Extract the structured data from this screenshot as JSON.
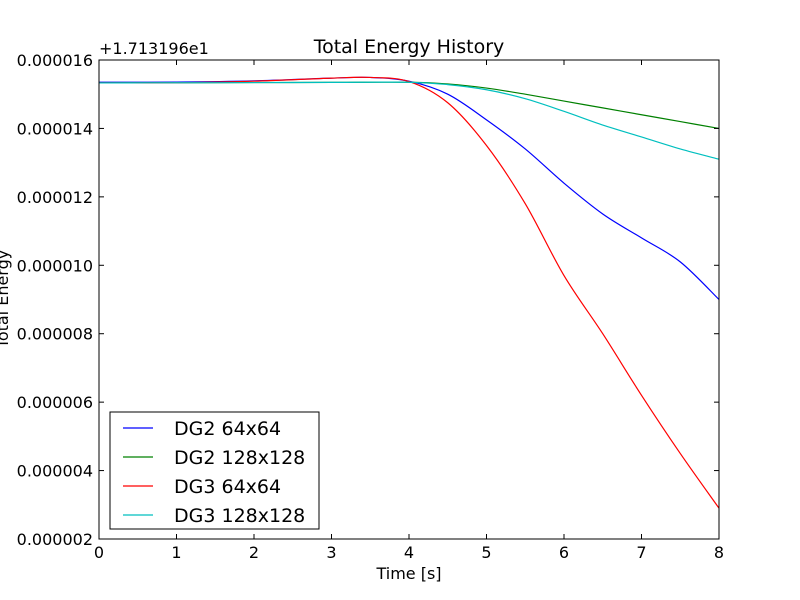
{
  "chart_data": {
    "type": "line",
    "title": "Total Energy History",
    "xlabel": "Time [s]",
    "ylabel": "Total Energy",
    "y_offset_label": "+1.713196e1",
    "xlim": [
      0,
      8
    ],
    "ylim": [
      2e-06,
      1.6e-05
    ],
    "x_ticks": [
      "0",
      "1",
      "2",
      "3",
      "4",
      "5",
      "6",
      "7",
      "8"
    ],
    "y_ticks": [
      "0.000002",
      "0.000004",
      "0.000006",
      "0.000008",
      "0.000010",
      "0.000012",
      "0.000014",
      "0.000016"
    ],
    "grid": false,
    "legend_position": "lower-left",
    "series": [
      {
        "name": "DG2 64x64",
        "color": "#0000ff",
        "x": [
          0,
          1,
          2,
          3,
          3.5,
          4,
          4.5,
          5,
          5.5,
          6,
          6.5,
          7,
          7.5,
          8
        ],
        "y": [
          1.535e-05,
          1.5355e-05,
          1.539e-05,
          1.547e-05,
          1.549e-05,
          1.538e-05,
          1.5e-05,
          1.425e-05,
          1.34e-05,
          1.24e-05,
          1.15e-05,
          1.08e-05,
          1.01e-05,
          9e-06
        ]
      },
      {
        "name": "DG2 128x128",
        "color": "#008000",
        "x": [
          0,
          1,
          2,
          3,
          4,
          4.5,
          5,
          5.5,
          6,
          6.5,
          7,
          7.5,
          8
        ],
        "y": [
          1.533e-05,
          1.5335e-05,
          1.534e-05,
          1.5345e-05,
          1.535e-05,
          1.53e-05,
          1.518e-05,
          1.5e-05,
          1.48e-05,
          1.46e-05,
          1.44e-05,
          1.42e-05,
          1.4e-05
        ]
      },
      {
        "name": "DG3 64x64",
        "color": "#ff0000",
        "x": [
          0,
          1,
          2,
          3,
          3.5,
          4,
          4.5,
          5,
          5.5,
          6,
          6.5,
          7,
          7.5,
          8
        ],
        "y": [
          1.533e-05,
          1.5335e-05,
          1.538e-05,
          1.547e-05,
          1.549e-05,
          1.537e-05,
          1.475e-05,
          1.35e-05,
          1.18e-05,
          9.7e-06,
          8e-06,
          6.2e-06,
          4.5e-06,
          2.9e-06
        ]
      },
      {
        "name": "DG3 128x128",
        "color": "#00bfbf",
        "x": [
          0,
          1,
          2,
          3,
          4,
          4.5,
          5,
          5.5,
          6,
          6.5,
          7,
          7.5,
          8
        ],
        "y": [
          1.533e-05,
          1.5335e-05,
          1.534e-05,
          1.5345e-05,
          1.535e-05,
          1.528e-05,
          1.513e-05,
          1.487e-05,
          1.45e-05,
          1.41e-05,
          1.375e-05,
          1.34e-05,
          1.31e-05
        ]
      }
    ]
  }
}
